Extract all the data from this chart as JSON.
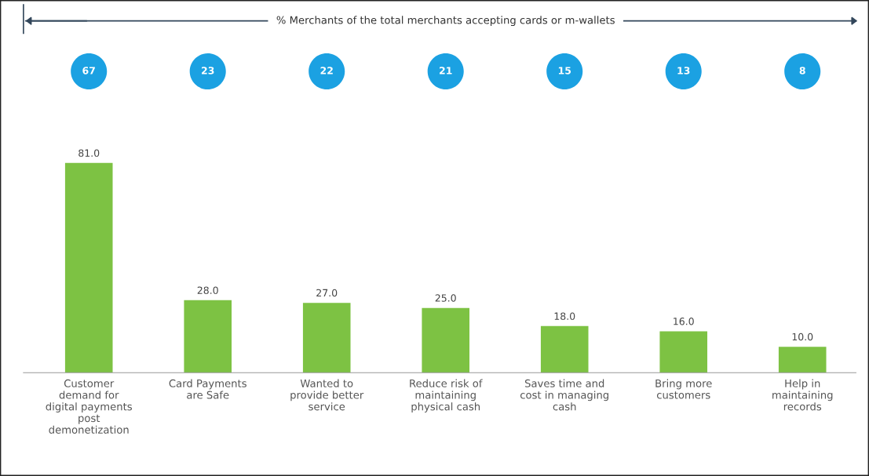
{
  "chart_data": [
    {
      "type": "other",
      "title": "% Merchants of the total merchants accepting cards or m-wallets",
      "categories": [
        null,
        null,
        null,
        null,
        null,
        null,
        null
      ],
      "values": [
        67,
        23,
        22,
        21,
        15,
        13,
        8
      ],
      "color": "#1ba1e2",
      "data_labels": true
    },
    {
      "type": "bar",
      "categories": [
        "Customer\ndemand for\ndigital payments\npost\ndemonetization",
        "Card Payments\nare Safe",
        "Wanted to\nprovide better\nservice",
        "Reduce risk of\nmaintaining\nphysical cash",
        "Saves time and\ncost in managing\ncash",
        "Bring more\ncustomers",
        "Help in\nmaintaining\nrecords"
      ],
      "values": [
        81.0,
        28.0,
        27.0,
        25.0,
        18.0,
        16.0,
        10.0
      ],
      "value_labels": [
        "81.0",
        "28.0",
        "27.0",
        "25.0",
        "18.0",
        "16.0",
        "10.0"
      ],
      "color": "#7dc243"
    }
  ]
}
